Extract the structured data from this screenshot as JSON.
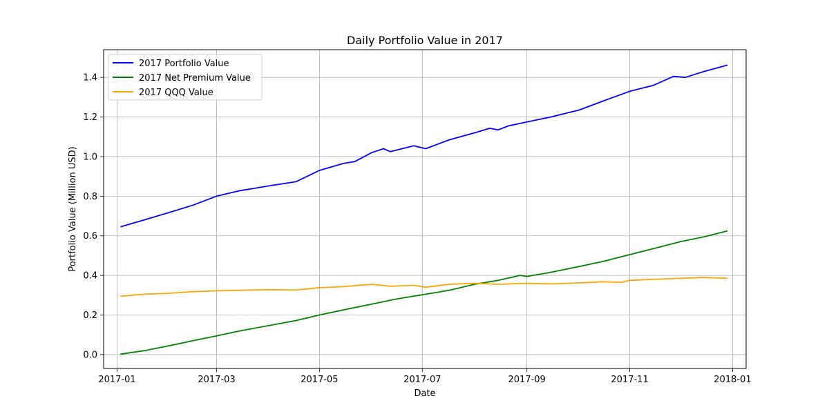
{
  "chart_data": {
    "type": "line",
    "title": "Daily Portfolio Value in 2017",
    "xlabel": "Date",
    "ylabel": "Portfolio Value (Million USD)",
    "xlim": [
      "2016-12-24",
      "2018-01-09"
    ],
    "ylim": [
      -0.07,
      1.54
    ],
    "x_ticks": [
      {
        "date": "2017-01-01",
        "label": "2017-01"
      },
      {
        "date": "2017-03-01",
        "label": "2017-03"
      },
      {
        "date": "2017-05-01",
        "label": "2017-05"
      },
      {
        "date": "2017-07-01",
        "label": "2017-07"
      },
      {
        "date": "2017-09-01",
        "label": "2017-09"
      },
      {
        "date": "2017-11-01",
        "label": "2017-11"
      },
      {
        "date": "2018-01-01",
        "label": "2018-01"
      }
    ],
    "y_ticks": [
      {
        "value": 0.0,
        "label": "0.0"
      },
      {
        "value": 0.2,
        "label": "0.2"
      },
      {
        "value": 0.4,
        "label": "0.4"
      },
      {
        "value": 0.6,
        "label": "0.6"
      },
      {
        "value": 0.8,
        "label": "0.8"
      },
      {
        "value": 1.0,
        "label": "1.0"
      },
      {
        "value": 1.2,
        "label": "1.2"
      },
      {
        "value": 1.4,
        "label": "1.4"
      }
    ],
    "grid": true,
    "legend_position": "top-left",
    "series": [
      {
        "name": "2017 Portfolio Value",
        "color": "#0000ff",
        "x": [
          "2017-01-03",
          "2017-01-17",
          "2017-02-01",
          "2017-02-15",
          "2017-03-01",
          "2017-03-15",
          "2017-04-03",
          "2017-04-17",
          "2017-05-01",
          "2017-05-15",
          "2017-05-22",
          "2017-06-01",
          "2017-06-08",
          "2017-06-12",
          "2017-06-26",
          "2017-07-03",
          "2017-07-17",
          "2017-08-01",
          "2017-08-10",
          "2017-08-15",
          "2017-08-21",
          "2017-09-01",
          "2017-09-15",
          "2017-10-02",
          "2017-10-16",
          "2017-11-01",
          "2017-11-15",
          "2017-11-27",
          "2017-12-04",
          "2017-12-15",
          "2017-12-29"
        ],
        "values": [
          0.645,
          0.68,
          0.718,
          0.755,
          0.8,
          0.828,
          0.855,
          0.873,
          0.93,
          0.965,
          0.975,
          1.02,
          1.04,
          1.025,
          1.055,
          1.04,
          1.085,
          1.12,
          1.143,
          1.135,
          1.155,
          1.175,
          1.2,
          1.235,
          1.28,
          1.33,
          1.36,
          1.405,
          1.4,
          1.43,
          1.462
        ]
      },
      {
        "name": "2017 Net Premium Value",
        "color": "#008000",
        "x": [
          "2017-01-03",
          "2017-01-17",
          "2017-02-01",
          "2017-02-15",
          "2017-03-01",
          "2017-03-15",
          "2017-04-03",
          "2017-04-17",
          "2017-05-01",
          "2017-05-15",
          "2017-06-01",
          "2017-06-15",
          "2017-07-03",
          "2017-07-17",
          "2017-08-01",
          "2017-08-15",
          "2017-08-28",
          "2017-09-01",
          "2017-09-15",
          "2017-10-02",
          "2017-10-16",
          "2017-11-01",
          "2017-11-15",
          "2017-12-01",
          "2017-12-15",
          "2017-12-29"
        ],
        "values": [
          0.002,
          0.02,
          0.045,
          0.07,
          0.095,
          0.12,
          0.15,
          0.172,
          0.2,
          0.225,
          0.255,
          0.28,
          0.305,
          0.325,
          0.355,
          0.375,
          0.4,
          0.395,
          0.415,
          0.445,
          0.47,
          0.505,
          0.535,
          0.57,
          0.595,
          0.625
        ]
      },
      {
        "name": "2017 QQQ Value",
        "color": "#ffa500",
        "x": [
          "2017-01-03",
          "2017-01-17",
          "2017-02-01",
          "2017-02-15",
          "2017-03-01",
          "2017-03-15",
          "2017-04-03",
          "2017-04-17",
          "2017-05-01",
          "2017-05-15",
          "2017-06-01",
          "2017-06-12",
          "2017-06-26",
          "2017-07-03",
          "2017-07-17",
          "2017-08-01",
          "2017-08-15",
          "2017-09-01",
          "2017-09-15",
          "2017-10-02",
          "2017-10-16",
          "2017-10-27",
          "2017-11-01",
          "2017-11-15",
          "2017-12-01",
          "2017-12-15",
          "2017-12-29"
        ],
        "values": [
          0.295,
          0.305,
          0.31,
          0.318,
          0.322,
          0.325,
          0.328,
          0.326,
          0.338,
          0.343,
          0.355,
          0.345,
          0.35,
          0.34,
          0.355,
          0.36,
          0.355,
          0.36,
          0.357,
          0.362,
          0.368,
          0.365,
          0.375,
          0.38,
          0.385,
          0.39,
          0.385
        ]
      }
    ]
  }
}
